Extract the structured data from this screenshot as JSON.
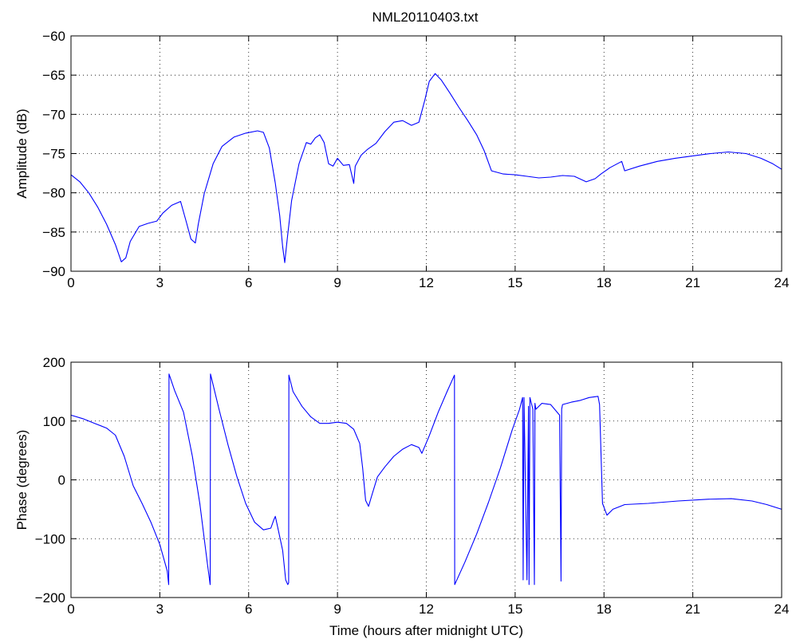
{
  "title": "NML20110403.txt",
  "colors": {
    "line": "#0000ff",
    "axis": "#000000",
    "grid": "#000000",
    "background": "#ffffff"
  },
  "chart_data": [
    {
      "type": "line",
      "title": "NML20110403.txt",
      "xlabel": "",
      "ylabel": "Amplitude (dB)",
      "xlim": [
        0,
        24
      ],
      "ylim": [
        -90,
        -60
      ],
      "xticks": [
        0,
        3,
        6,
        9,
        12,
        15,
        18,
        21,
        24
      ],
      "xtick_labels": [
        "0",
        "3",
        "6",
        "9",
        "12",
        "15",
        "18",
        "21",
        "24"
      ],
      "yticks": [
        -90,
        -85,
        -80,
        -75,
        -70,
        -65,
        -60
      ],
      "ytick_labels": [
        "−90",
        "−85",
        "−80",
        "−75",
        "−70",
        "−65",
        "−60"
      ],
      "grid": true,
      "series": [
        {
          "x": [
            0,
            0.3,
            0.6,
            0.9,
            1.2,
            1.5,
            1.7,
            1.85,
            2.0,
            2.3,
            2.6,
            2.9,
            3.1,
            3.4,
            3.7,
            3.9,
            4.05,
            4.2,
            4.3,
            4.5,
            4.8,
            5.1,
            5.5,
            5.9,
            6.3,
            6.5,
            6.7,
            6.9,
            7.05,
            7.15,
            7.22,
            7.3,
            7.45,
            7.7,
            7.95,
            8.1,
            8.25,
            8.4,
            8.55,
            8.7,
            8.85,
            9.0,
            9.2,
            9.4,
            9.55,
            9.6,
            9.8,
            10.0,
            10.3,
            10.6,
            10.9,
            11.2,
            11.5,
            11.75,
            11.95,
            12.1,
            12.3,
            12.5,
            12.8,
            13.1,
            13.4,
            13.7,
            13.95,
            14.2,
            14.6,
            15.0,
            15.4,
            15.8,
            16.2,
            16.6,
            17.0,
            17.4,
            17.7,
            17.9,
            18.2,
            18.6,
            18.7,
            19.2,
            19.8,
            20.4,
            21.0,
            21.6,
            22.2,
            22.8,
            23.3,
            23.7,
            24.0
          ],
          "y": [
            -77.7,
            -78.6,
            -80.0,
            -81.8,
            -84.0,
            -86.6,
            -88.8,
            -88.3,
            -86.2,
            -84.3,
            -83.9,
            -83.6,
            -82.6,
            -81.6,
            -81.1,
            -83.8,
            -85.9,
            -86.4,
            -84.0,
            -80.1,
            -76.3,
            -74.1,
            -72.9,
            -72.4,
            -72.1,
            -72.3,
            -74.3,
            -78.8,
            -82.9,
            -86.9,
            -88.9,
            -86.0,
            -81.0,
            -76.3,
            -73.6,
            -73.8,
            -73.0,
            -72.6,
            -73.6,
            -76.3,
            -76.6,
            -75.6,
            -76.5,
            -76.4,
            -78.8,
            -76.6,
            -75.2,
            -74.5,
            -73.7,
            -72.2,
            -71.0,
            -70.8,
            -71.4,
            -71.0,
            -68.2,
            -65.8,
            -64.8,
            -65.6,
            -67.3,
            -69.1,
            -70.8,
            -72.6,
            -74.6,
            -77.2,
            -77.6,
            -77.7,
            -77.9,
            -78.1,
            -78.0,
            -77.8,
            -77.9,
            -78.6,
            -78.2,
            -77.6,
            -76.8,
            -76.0,
            -77.2,
            -76.6,
            -76.0,
            -75.6,
            -75.3,
            -75.0,
            -74.8,
            -75.0,
            -75.6,
            -76.3,
            -77.0
          ]
        }
      ]
    },
    {
      "type": "line",
      "title": "",
      "xlabel": "Time (hours after midnight UTC)",
      "ylabel": "Phase (degrees)",
      "xlim": [
        0,
        24
      ],
      "ylim": [
        -200,
        200
      ],
      "xticks": [
        0,
        3,
        6,
        9,
        12,
        15,
        18,
        21,
        24
      ],
      "xtick_labels": [
        "0",
        "3",
        "6",
        "9",
        "12",
        "15",
        "18",
        "21",
        "24"
      ],
      "yticks": [
        -200,
        -100,
        0,
        100,
        200
      ],
      "ytick_labels": [
        "−200",
        "−100",
        "0",
        "100",
        "200"
      ],
      "grid": true,
      "series": [
        {
          "x": [
            0,
            0.4,
            0.8,
            1.2,
            1.5,
            1.8,
            2.1,
            2.4,
            2.7,
            3.0,
            3.25,
            3.3,
            3.31,
            3.5,
            3.8,
            4.1,
            4.35,
            4.6,
            4.7,
            4.71,
            5.0,
            5.3,
            5.6,
            5.9,
            6.2,
            6.5,
            6.75,
            6.85,
            6.9,
            7.0,
            7.15,
            7.25,
            7.32,
            7.35,
            7.36,
            7.5,
            7.8,
            8.1,
            8.4,
            8.7,
            9.0,
            9.3,
            9.55,
            9.75,
            9.85,
            9.95,
            10.05,
            10.15,
            10.35,
            10.6,
            10.9,
            11.2,
            11.5,
            11.75,
            11.85,
            12.1,
            12.4,
            12.7,
            12.95,
            12.96,
            13.3,
            13.7,
            14.1,
            14.5,
            14.9,
            15.15,
            15.25,
            15.27,
            15.3,
            15.4,
            15.45,
            15.47,
            15.5,
            15.6,
            15.65,
            15.67,
            15.7,
            15.9,
            16.2,
            16.5,
            16.55,
            16.57,
            16.6,
            16.9,
            17.2,
            17.5,
            17.8,
            17.85,
            17.95,
            18.1,
            18.3,
            18.7,
            19.5,
            20.5,
            21.5,
            22.3,
            23.0,
            23.5,
            24.0
          ],
          "y": [
            110,
            104,
            96,
            88,
            76,
            40,
            -10,
            -40,
            -72,
            -110,
            -155,
            -178,
            180,
            152,
            115,
            40,
            -40,
            -140,
            -178,
            180,
            120,
            60,
            6,
            -40,
            -72,
            -85,
            -82,
            -68,
            -62,
            -85,
            -120,
            -170,
            -178,
            -175,
            178,
            150,
            125,
            107,
            96,
            96,
            98,
            96,
            86,
            62,
            20,
            -35,
            -45,
            -28,
            5,
            22,
            40,
            52,
            60,
            55,
            45,
            75,
            115,
            150,
            178,
            -178,
            -140,
            -92,
            -38,
            20,
            85,
            120,
            140,
            -170,
            140,
            -170,
            125,
            -178,
            140,
            120,
            -178,
            130,
            120,
            130,
            128,
            110,
            -172,
            120,
            128,
            132,
            135,
            140,
            142,
            128,
            -40,
            -60,
            -50,
            -42,
            -40,
            -36,
            -33,
            -32,
            -36,
            -42,
            -50
          ]
        }
      ]
    }
  ]
}
